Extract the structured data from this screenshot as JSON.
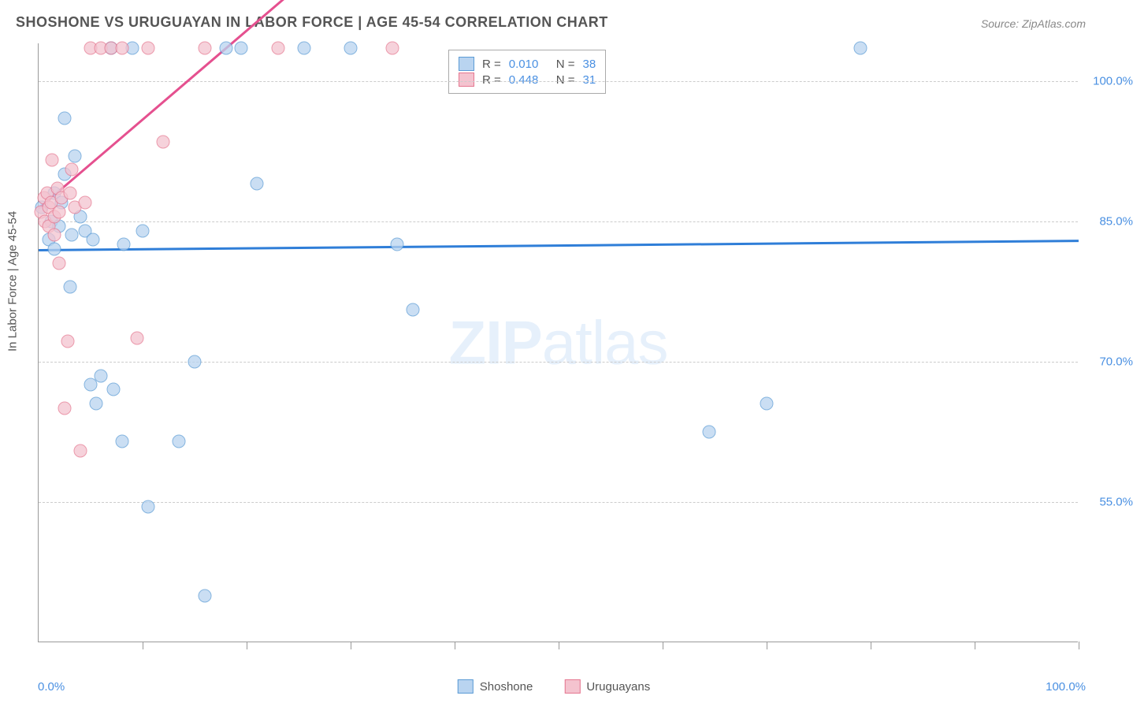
{
  "chart": {
    "type": "scatter",
    "title": "SHOSHONE VS URUGUAYAN IN LABOR FORCE | AGE 45-54 CORRELATION CHART",
    "source": "Source: ZipAtlas.com",
    "ylabel": "In Labor Force | Age 45-54",
    "watermark_bold": "ZIP",
    "watermark_light": "atlas",
    "x_min": 0.0,
    "x_max": 100.0,
    "y_min": 40.0,
    "y_max": 104.0,
    "x_axis_labels": [
      {
        "value": 0.0,
        "text": "0.0%"
      },
      {
        "value": 100.0,
        "text": "100.0%"
      }
    ],
    "y_gridlines": [
      {
        "value": 100.0,
        "text": "100.0%"
      },
      {
        "value": 85.0,
        "text": "85.0%"
      },
      {
        "value": 70.0,
        "text": "70.0%"
      },
      {
        "value": 55.0,
        "text": "55.0%"
      }
    ],
    "x_ticks": [
      10,
      20,
      30,
      40,
      50,
      60,
      70,
      80,
      90,
      100
    ],
    "legend_top": [
      {
        "swatch_fill": "#b9d4f0",
        "swatch_border": "#5b9bd5",
        "r_label": "R = ",
        "r_value": "0.010",
        "n_label": "N = ",
        "n_value": "38"
      },
      {
        "swatch_fill": "#f4c3cf",
        "swatch_border": "#e57790",
        "r_label": "R = ",
        "r_value": "0.448",
        "n_label": "N = ",
        "n_value": "31"
      }
    ],
    "legend_bottom": [
      {
        "swatch_fill": "#b9d4f0",
        "swatch_border": "#5b9bd5",
        "label": "Shoshone"
      },
      {
        "swatch_fill": "#f4c3cf",
        "swatch_border": "#e57790",
        "label": "Uruguayans"
      }
    ],
    "series": [
      {
        "name": "Shoshone",
        "fill": "#b9d4f0",
        "stroke": "#5b9bd5",
        "trend": {
          "x1": 0,
          "y1": 82.0,
          "x2": 100,
          "y2": 83.0,
          "color": "#2f7ed8"
        },
        "points": [
          [
            0.3,
            86.5
          ],
          [
            1.0,
            83.0
          ],
          [
            1.2,
            85.0
          ],
          [
            1.5,
            82.0
          ],
          [
            1.5,
            88.0
          ],
          [
            2.0,
            84.5
          ],
          [
            2.2,
            87.0
          ],
          [
            2.5,
            96.0
          ],
          [
            2.5,
            90.0
          ],
          [
            3.0,
            78.0
          ],
          [
            3.2,
            83.5
          ],
          [
            3.5,
            92.0
          ],
          [
            4.0,
            85.5
          ],
          [
            4.5,
            84.0
          ],
          [
            5.0,
            67.5
          ],
          [
            5.2,
            83.0
          ],
          [
            5.5,
            65.5
          ],
          [
            6.0,
            68.5
          ],
          [
            7.0,
            103.5
          ],
          [
            7.2,
            67.0
          ],
          [
            8.0,
            61.5
          ],
          [
            8.2,
            82.5
          ],
          [
            9.0,
            103.5
          ],
          [
            10.0,
            84.0
          ],
          [
            10.5,
            54.5
          ],
          [
            13.5,
            61.5
          ],
          [
            15.0,
            70.0
          ],
          [
            16.0,
            45.0
          ],
          [
            18.0,
            103.5
          ],
          [
            19.5,
            103.5
          ],
          [
            21.0,
            89.0
          ],
          [
            25.5,
            103.5
          ],
          [
            30.0,
            103.5
          ],
          [
            34.5,
            82.5
          ],
          [
            36.0,
            75.5
          ],
          [
            64.5,
            62.5
          ],
          [
            70.0,
            65.5
          ],
          [
            79.0,
            103.5
          ]
        ]
      },
      {
        "name": "Uruguayans",
        "fill": "#f4c3cf",
        "stroke": "#e57790",
        "trend": {
          "x1": 0,
          "y1": 86.5,
          "x2": 30,
          "y2": 115.0,
          "color": "#e5508f"
        },
        "points": [
          [
            0.2,
            86.0
          ],
          [
            0.5,
            87.5
          ],
          [
            0.6,
            85.0
          ],
          [
            0.8,
            88.0
          ],
          [
            1.0,
            84.5
          ],
          [
            1.0,
            86.5
          ],
          [
            1.2,
            87.0
          ],
          [
            1.3,
            91.5
          ],
          [
            1.5,
            85.5
          ],
          [
            1.5,
            83.5
          ],
          [
            1.8,
            88.5
          ],
          [
            2.0,
            86.0
          ],
          [
            2.0,
            80.5
          ],
          [
            2.2,
            87.5
          ],
          [
            2.5,
            65.0
          ],
          [
            2.8,
            72.2
          ],
          [
            3.0,
            88.0
          ],
          [
            3.2,
            90.5
          ],
          [
            3.5,
            86.5
          ],
          [
            4.0,
            60.5
          ],
          [
            4.5,
            87.0
          ],
          [
            5.0,
            103.5
          ],
          [
            6.0,
            103.5
          ],
          [
            7.0,
            103.5
          ],
          [
            8.0,
            103.5
          ],
          [
            9.5,
            72.5
          ],
          [
            10.5,
            103.5
          ],
          [
            12.0,
            93.5
          ],
          [
            16.0,
            103.5
          ],
          [
            23.0,
            103.5
          ],
          [
            34.0,
            103.5
          ]
        ]
      }
    ],
    "colors": {
      "title": "#555555",
      "axis_text": "#4a90e2",
      "grid": "#cccccc",
      "background": "#ffffff"
    },
    "marker_size": 17,
    "title_fontsize": 18,
    "label_fontsize": 15
  }
}
